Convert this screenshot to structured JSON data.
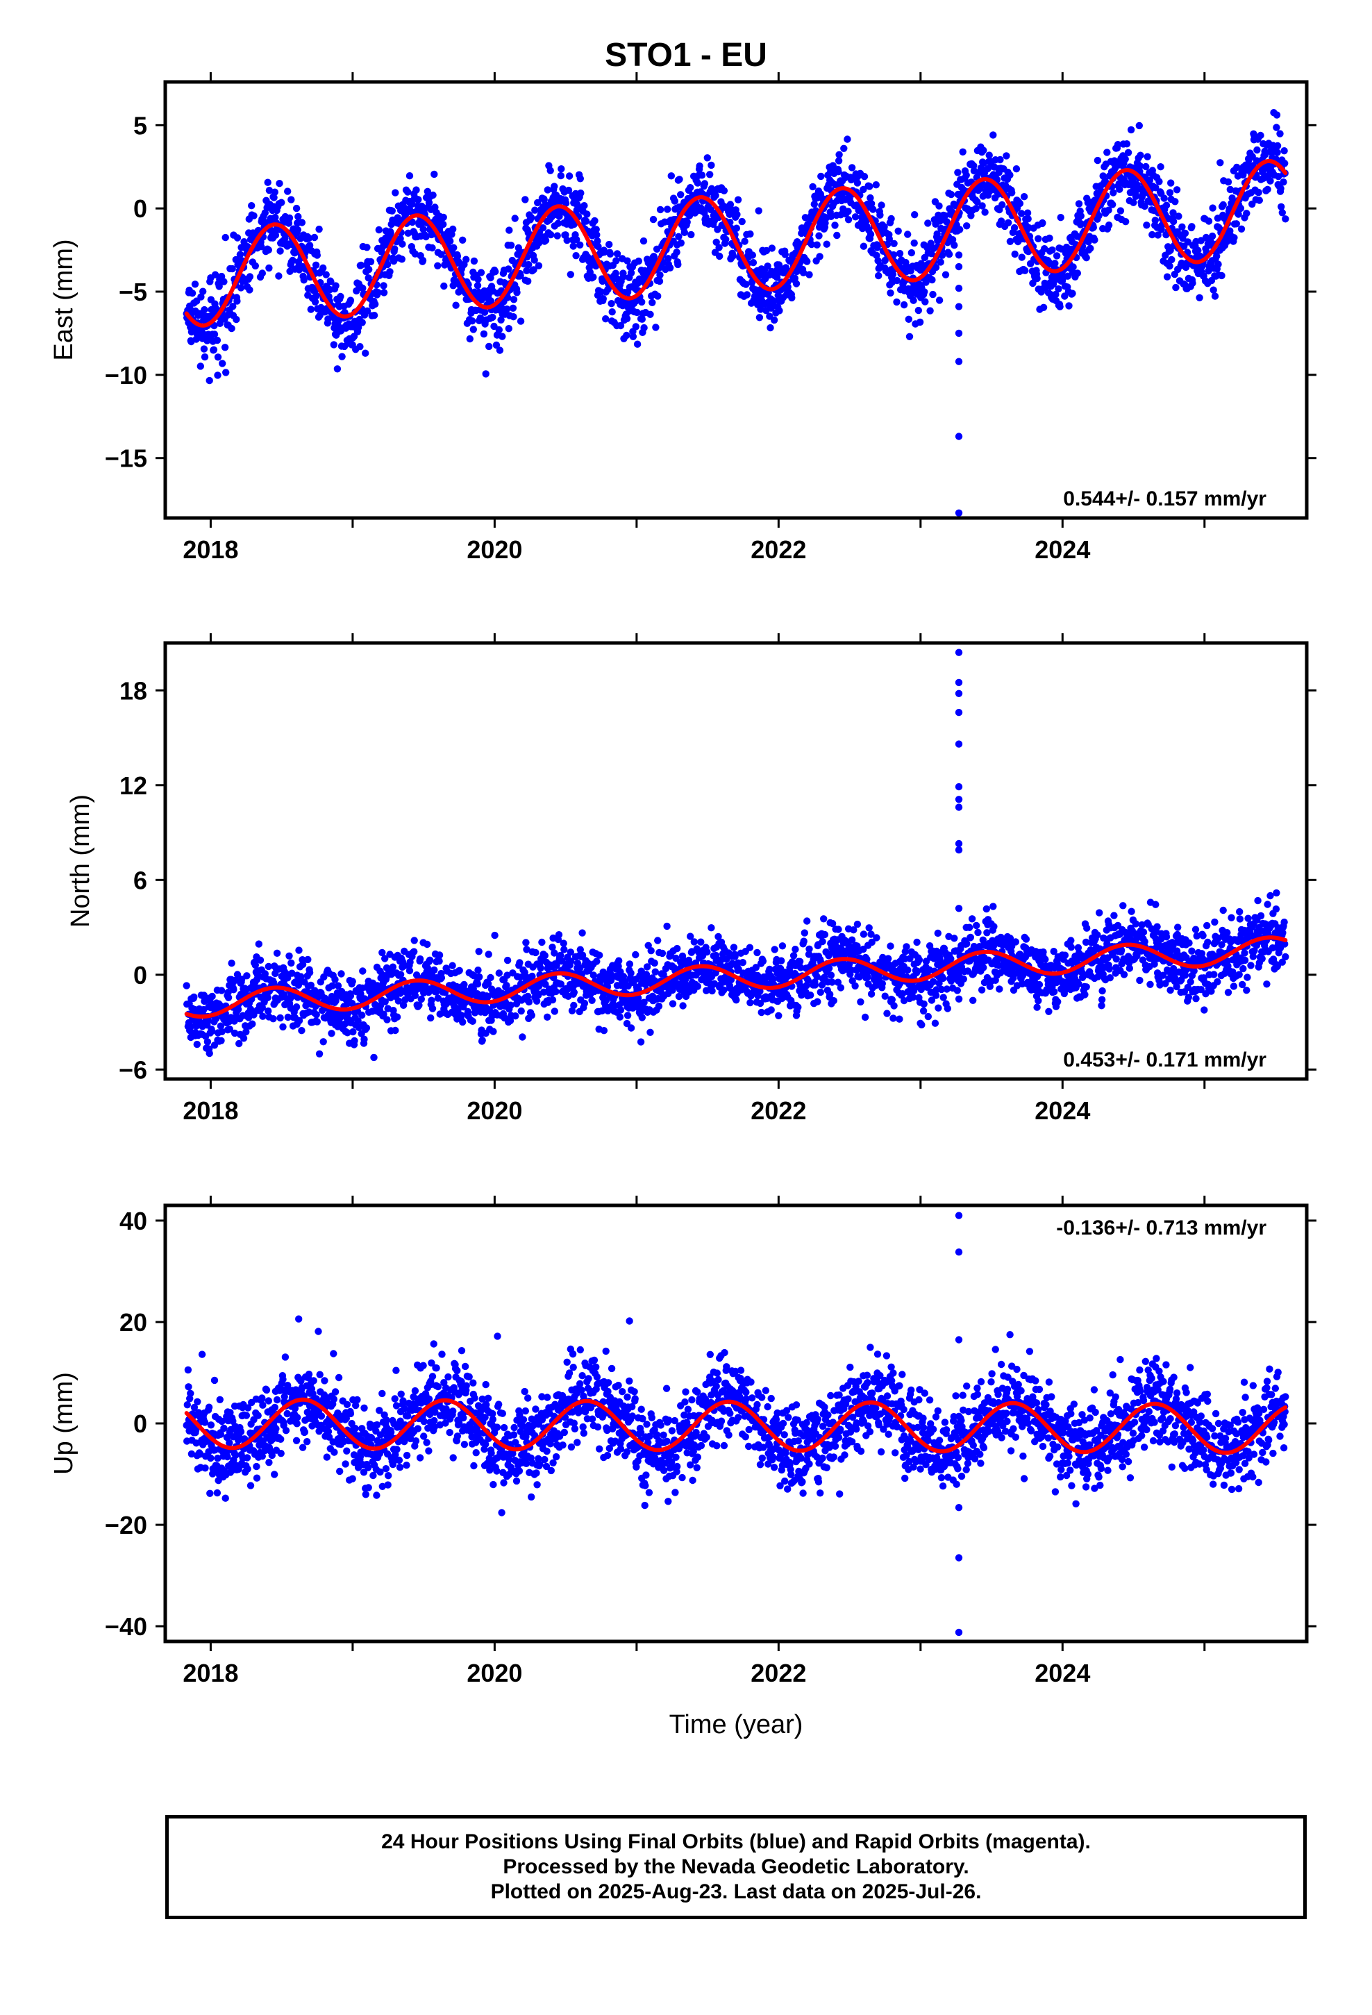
{
  "title": "STO1 - EU",
  "xlabel": "Time (year)",
  "footer": {
    "line1": "24 Hour Positions Using Final Orbits (blue) and Rapid Orbits (magenta).",
    "line2": "Processed by the Nevada Geodetic Laboratory.",
    "line3": "Plotted on 2025-Aug-23. Last data on 2025-Jul-26."
  },
  "colors": {
    "points": "#0000ff",
    "model": "#ff0000",
    "frame": "#000000"
  },
  "chart_data": [
    {
      "type": "scatter",
      "ylabel": "East (mm)",
      "rate_label": "0.544+/- 0.157 mm/yr",
      "rate_label_position": "bottom-right",
      "xlim": [
        2017.68,
        2025.72
      ],
      "ylim": [
        -18.6,
        7.6
      ],
      "xticks": [
        2018,
        2020,
        2022,
        2024
      ],
      "xtick_labels": [
        "2018",
        "2020",
        "2022",
        "2024"
      ],
      "yticks": [
        5,
        0,
        -5,
        -10,
        -15
      ],
      "ytick_labels": [
        "5",
        "0",
        "−5",
        "−10",
        "−15"
      ],
      "model": {
        "start": 2017.83,
        "end": 2025.57,
        "offset_at_start": -4.2,
        "trend_mm_per_yr": 0.544,
        "annual_amplitude": 2.9,
        "peak_phase_year": 0.45,
        "noise_mm": 1.2
      },
      "outliers": [
        {
          "x": 2023.27,
          "y": -18.3
        },
        {
          "x": 2023.27,
          "y": -13.7
        },
        {
          "x": 2023.27,
          "y": -9.2
        },
        {
          "x": 2023.27,
          "y": -7.5
        },
        {
          "x": 2023.27,
          "y": -5.9
        },
        {
          "x": 2023.27,
          "y": -4.8
        },
        {
          "x": 2023.27,
          "y": -3.5
        },
        {
          "x": 2023.27,
          "y": -2.8
        }
      ]
    },
    {
      "type": "scatter",
      "ylabel": "North (mm)",
      "rate_label": "0.453+/- 0.171 mm/yr",
      "rate_label_position": "bottom-right",
      "xlim": [
        2017.68,
        2025.72
      ],
      "ylim": [
        -6.6,
        21.0
      ],
      "xticks": [
        2018,
        2020,
        2022,
        2024
      ],
      "xtick_labels": [
        "2018",
        "2020",
        "2022",
        "2024"
      ],
      "yticks": [
        18,
        12,
        6,
        0,
        -6
      ],
      "ytick_labels": [
        "18",
        "12",
        "6",
        "0",
        "−6"
      ],
      "model": {
        "start": 2017.83,
        "end": 2025.57,
        "offset_at_start": -1.9,
        "trend_mm_per_yr": 0.453,
        "annual_amplitude": 0.8,
        "peak_phase_year": 0.45,
        "noise_mm": 1.1
      },
      "outliers": [
        {
          "x": 2023.27,
          "y": 20.4
        },
        {
          "x": 2023.27,
          "y": 18.5
        },
        {
          "x": 2023.27,
          "y": 17.8
        },
        {
          "x": 2023.27,
          "y": 16.6
        },
        {
          "x": 2023.27,
          "y": 14.6
        },
        {
          "x": 2023.27,
          "y": 11.9
        },
        {
          "x": 2023.27,
          "y": 11.1
        },
        {
          "x": 2023.27,
          "y": 10.6
        },
        {
          "x": 2023.27,
          "y": 8.3
        },
        {
          "x": 2023.27,
          "y": 7.9
        },
        {
          "x": 2023.27,
          "y": 4.2
        }
      ]
    },
    {
      "type": "scatter",
      "ylabel": "Up (mm)",
      "rate_label": "-0.136+/- 0.713 mm/yr",
      "rate_label_position": "top-right",
      "xlim": [
        2017.68,
        2025.72
      ],
      "ylim": [
        -43.0,
        43.0
      ],
      "xticks": [
        2018,
        2020,
        2022,
        2024
      ],
      "xtick_labels": [
        "2018",
        "2020",
        "2022",
        "2024"
      ],
      "yticks": [
        40,
        20,
        0,
        -20,
        -40
      ],
      "ytick_labels": [
        "40",
        "20",
        "0",
        "−20",
        "−40"
      ],
      "model": {
        "start": 2017.83,
        "end": 2025.57,
        "offset_at_start": 0.0,
        "trend_mm_per_yr": -0.136,
        "annual_amplitude": 4.8,
        "peak_phase_year": 0.65,
        "noise_mm": 4.2
      },
      "outliers": [
        {
          "x": 2023.27,
          "y": 41.0
        },
        {
          "x": 2023.27,
          "y": 33.8
        },
        {
          "x": 2023.27,
          "y": 16.5
        },
        {
          "x": 2023.27,
          "y": -16.6
        },
        {
          "x": 2023.27,
          "y": -26.5
        },
        {
          "x": 2023.27,
          "y": -41.2
        },
        {
          "x": 2018.62,
          "y": 20.6
        },
        {
          "x": 2020.02,
          "y": 17.2
        },
        {
          "x": 2020.95,
          "y": 20.2
        },
        {
          "x": 2023.63,
          "y": 17.5
        },
        {
          "x": 2020.05,
          "y": -17.6
        }
      ]
    }
  ]
}
